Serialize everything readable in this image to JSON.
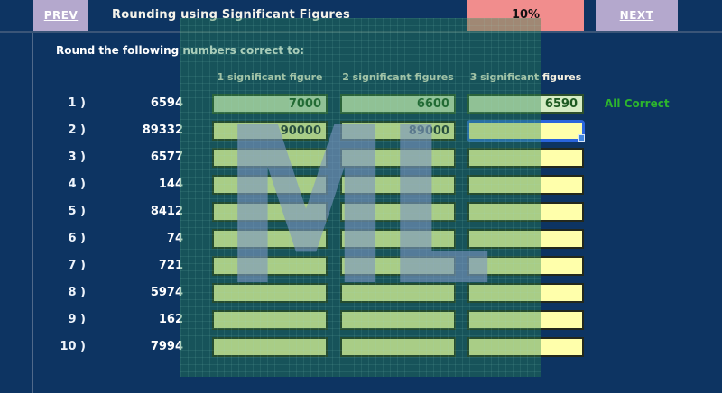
{
  "topbar": {
    "prev_label": "PREV",
    "title": "Rounding using Significant Figures",
    "progress_label": "10%",
    "next_label": "NEXT"
  },
  "instruction": "Round the following numbers correct to:",
  "columns": [
    "1 significant figure",
    "2 significant figures",
    "3 significant figures"
  ],
  "rows": [
    {
      "label": "1 )",
      "number": "6594",
      "values": [
        "7000",
        "6600",
        "6590"
      ],
      "state": "correct",
      "status": "All Correct",
      "focus_col": null
    },
    {
      "label": "2 )",
      "number": "89332",
      "values": [
        "90000",
        "89000",
        ""
      ],
      "state": "filled",
      "status": "",
      "focus_col": 2
    },
    {
      "label": "3 )",
      "number": "6577",
      "values": [
        "",
        "",
        ""
      ],
      "state": "empty",
      "status": "",
      "focus_col": null
    },
    {
      "label": "4 )",
      "number": "144",
      "values": [
        "",
        "",
        ""
      ],
      "state": "empty",
      "status": "",
      "focus_col": null
    },
    {
      "label": "5 )",
      "number": "8412",
      "values": [
        "",
        "",
        ""
      ],
      "state": "empty",
      "status": "",
      "focus_col": null
    },
    {
      "label": "6 )",
      "number": "74",
      "values": [
        "",
        "",
        ""
      ],
      "state": "empty",
      "status": "",
      "focus_col": null
    },
    {
      "label": "7 )",
      "number": "721",
      "values": [
        "",
        "",
        ""
      ],
      "state": "empty",
      "status": "",
      "focus_col": null
    },
    {
      "label": "8 )",
      "number": "5974",
      "values": [
        "",
        "",
        ""
      ],
      "state": "empty",
      "status": "",
      "focus_col": null
    },
    {
      "label": "9 )",
      "number": "162",
      "values": [
        "",
        "",
        ""
      ],
      "state": "empty",
      "status": "",
      "focus_col": null
    },
    {
      "label": "10 )",
      "number": "7994",
      "values": [
        "",
        "",
        ""
      ],
      "state": "empty",
      "status": "",
      "focus_col": null
    }
  ],
  "watermark": {
    "text": "ML"
  },
  "colors": {
    "background": "#0d3462",
    "nav_button": "#b4a8cd",
    "progress_bg": "#f18d8d",
    "field_yellow": "#ffffab",
    "field_correct_green": "#d5ecc4",
    "correct_text_green": "#1e5a21",
    "status_green": "#2db52d",
    "focus_blue": "#2a65dd",
    "watermark_teal": "rgba(40,130,80,0.40)"
  }
}
